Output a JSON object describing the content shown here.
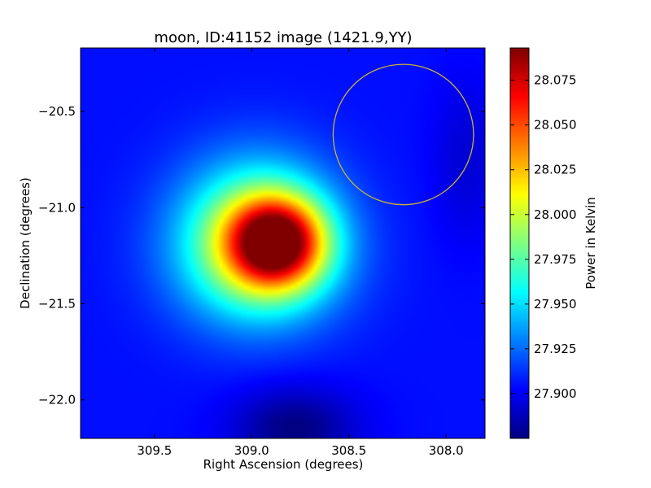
{
  "chart_data": {
    "type": "heatmap",
    "title": "moon, ID:41152 image (1421.9,YY)",
    "xlabel": "Right Ascension (degrees)",
    "ylabel": "Declination (degrees)",
    "colorbar_label": "Power in Kelvin",
    "xlim": [
      309.88,
      307.8
    ],
    "ylim": [
      -22.2,
      -20.17
    ],
    "x_ticks": [
      309.5,
      309.0,
      308.5,
      308.0
    ],
    "x_tick_labels": [
      "309.5",
      "309.0",
      "308.5",
      "308.0"
    ],
    "y_ticks": [
      -20.5,
      -21.0,
      -21.5,
      -22.0
    ],
    "y_tick_labels": [
      "−20.5",
      "−21.0",
      "−21.5",
      "−22.0"
    ],
    "colorbar_range": [
      27.875,
      28.093
    ],
    "colorbar_ticks": [
      27.9,
      27.925,
      27.95,
      27.975,
      28.0,
      28.025,
      28.05,
      28.075
    ],
    "colorbar_tick_labels": [
      "27.900",
      "27.925",
      "27.950",
      "27.975",
      "28.000",
      "28.025",
      "28.050",
      "28.075"
    ],
    "colormap": "jet",
    "grid": false,
    "background_level": 27.905,
    "peak": {
      "ra": 308.87,
      "dec": -21.18,
      "value": 28.093
    },
    "blobs": [
      {
        "ra": 308.87,
        "dec": -21.18,
        "sigma_ra": 0.17,
        "sigma_dec": 0.16,
        "amplitude": 0.14
      },
      {
        "ra": 308.98,
        "dec": -21.14,
        "sigma_ra": 0.28,
        "sigma_dec": 0.28,
        "amplitude": 0.08
      },
      {
        "ra": 308.95,
        "dec": -21.3,
        "sigma_ra": 0.3,
        "sigma_dec": 0.24,
        "amplitude": 0.03
      },
      {
        "ra": 308.78,
        "dec": -22.15,
        "sigma_ra": 0.22,
        "sigma_dec": 0.15,
        "amplitude": -0.03
      },
      {
        "ra": 307.9,
        "dec": -20.75,
        "sigma_ra": 0.12,
        "sigma_dec": 0.3,
        "amplitude": -0.012
      }
    ],
    "circle": {
      "ra": 308.22,
      "dec": -20.62,
      "radius_deg": 0.365,
      "color": "#c8b432"
    }
  }
}
